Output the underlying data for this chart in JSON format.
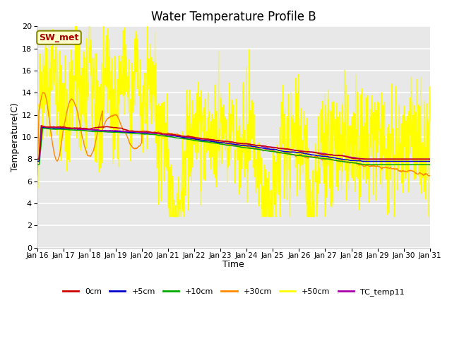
{
  "title": "Water Temperature Profile B",
  "xlabel": "Time",
  "ylabel": "Temperature(C)",
  "ylim": [
    0,
    20
  ],
  "yticks": [
    0,
    2,
    4,
    6,
    8,
    10,
    12,
    14,
    16,
    18,
    20
  ],
  "xtick_labels": [
    "Jan 16",
    "Jan 17",
    "Jan 18",
    "Jan 19",
    "Jan 20",
    "Jan 21",
    "Jan 22",
    "Jan 23",
    "Jan 24",
    "Jan 25",
    "Jan 26",
    "Jan 27",
    "Jan 28",
    "Jan 29",
    "Jan 30",
    "Jan 31"
  ],
  "fig_bg_color": "#ffffff",
  "plot_bg_color": "#e8e8e8",
  "grid_color": "#ffffff",
  "series_colors": {
    "0cm": "#cc0000",
    "+5cm": "#0000cc",
    "+10cm": "#00aa00",
    "+30cm": "#ff8800",
    "+50cm": "#ffff00",
    "TC_temp11": "#aa00aa"
  },
  "annotation_text": "SW_met",
  "annotation_fg": "#aa0000",
  "annotation_bg": "#ffffcc",
  "annotation_border": "#888800",
  "title_fontsize": 12,
  "axis_label_fontsize": 9,
  "tick_fontsize": 8
}
